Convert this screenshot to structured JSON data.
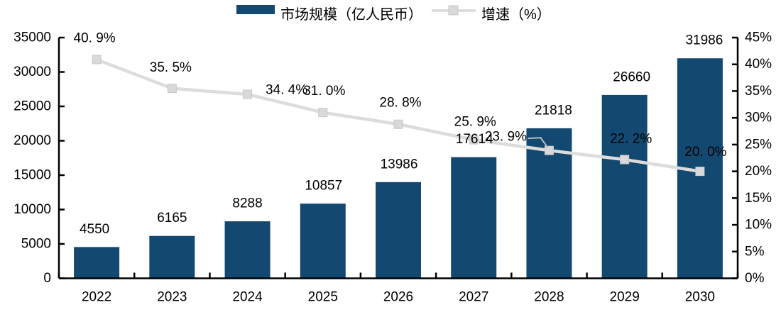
{
  "chart_data": {
    "type": "combo-bar-line",
    "title": "",
    "categories": [
      "2022",
      "2023",
      "2024",
      "2025",
      "2026",
      "2027",
      "2028",
      "2029",
      "2030"
    ],
    "series": [
      {
        "name": "市场规模（亿人民币）",
        "type": "bar",
        "axis": "left",
        "values": [
          4550,
          6165,
          8288,
          10857,
          13986,
          17614,
          21818,
          26660,
          31986
        ],
        "labels": [
          "4550",
          "6165",
          "8288",
          "10857",
          "13986",
          "17614",
          "21818",
          "26660",
          "31986"
        ]
      },
      {
        "name": "增速（%）",
        "type": "line",
        "axis": "right",
        "values": [
          40.9,
          35.5,
          34.4,
          31.0,
          28.8,
          25.9,
          23.9,
          22.2,
          20.0
        ],
        "labels": [
          "40. 9%",
          "35. 5%",
          "34. 4%",
          "31. 0%",
          "28. 8%",
          "25. 9%",
          "23. 9%",
          "22. 2%",
          "20. 0%"
        ]
      }
    ],
    "left_axis": {
      "min": 0,
      "max": 35000,
      "step": 5000,
      "tick_labels": [
        "0",
        "5000",
        "10000",
        "15000",
        "20000",
        "25000",
        "30000",
        "35000"
      ]
    },
    "right_axis": {
      "min": 0,
      "max": 45,
      "step": 5,
      "tick_labels": [
        "0%",
        "5%",
        "10%",
        "15%",
        "20%",
        "25%",
        "30%",
        "35%",
        "40%",
        "45%"
      ]
    },
    "legend_position": "top-center",
    "grid": false,
    "colors": {
      "bar": "#134870",
      "line": "#DCDCDC",
      "marker": "#D9D9D9",
      "marker_edge": "#C8C8C8",
      "leader": "#BFBFBF",
      "axis": "#000000",
      "text": "#000000"
    }
  }
}
